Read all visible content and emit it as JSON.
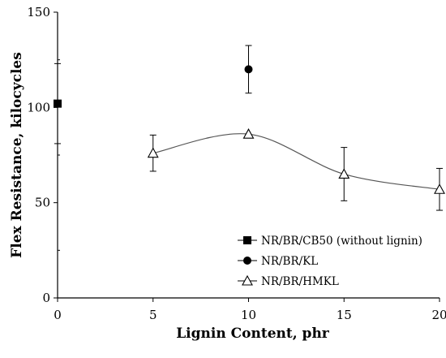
{
  "chart_data": {
    "type": "scatter",
    "xlabel": "Lignin Content, phr",
    "ylabel": "Flex Resistance, kilocycles",
    "xlim": [
      0,
      20
    ],
    "ylim": [
      0,
      150
    ],
    "xticks": [
      0,
      5,
      10,
      15,
      20
    ],
    "yticks": [
      0,
      50,
      100,
      150
    ],
    "grid": false,
    "legend_position": "bottom-right",
    "series": [
      {
        "name": "NR/BR/CB50 (without lignin)",
        "marker": "filled-square",
        "line": false,
        "points": [
          {
            "x": 0,
            "y": 102,
            "err": 21
          }
        ]
      },
      {
        "name": "NR/BR/KL",
        "marker": "filled-circle",
        "line": false,
        "points": [
          {
            "x": 10,
            "y": 120,
            "err": 12.5
          }
        ]
      },
      {
        "name": "NR/BR/HMKL",
        "marker": "open-triangle",
        "line": true,
        "smooth": true,
        "points": [
          {
            "x": 5,
            "y": 76,
            "err": 9.5
          },
          {
            "x": 10,
            "y": 86,
            "err": 0
          },
          {
            "x": 15,
            "y": 65,
            "err": 14
          },
          {
            "x": 20,
            "y": 57,
            "err": 11
          }
        ]
      }
    ],
    "colors": {
      "marker": "#000000",
      "line": "#555555",
      "axis": "#000000"
    }
  }
}
